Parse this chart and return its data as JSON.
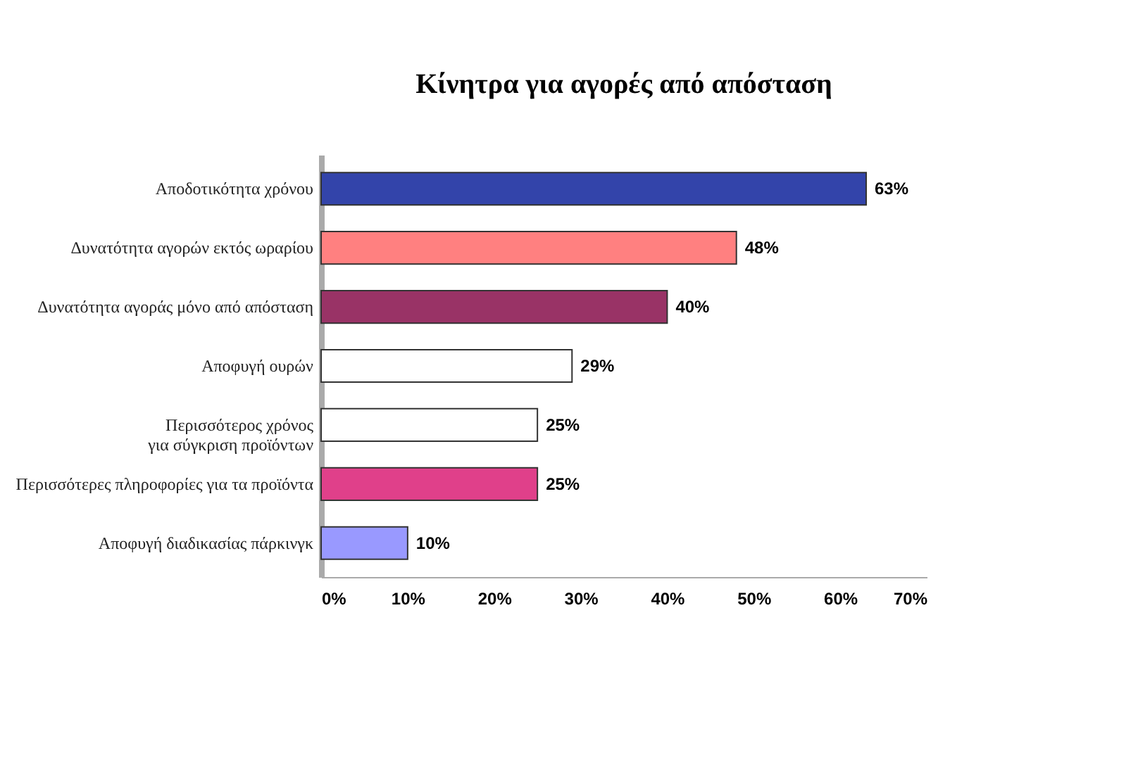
{
  "chart_data": {
    "type": "bar",
    "orientation": "horizontal",
    "title": "Κίνητρα για αγορές από απόσταση",
    "categories": [
      "Αποδοτικότητα χρόνου",
      "Δυνατότητα αγορών εκτός ωραρίου",
      "Δυνατότητα αγοράς μόνο από απόσταση",
      "Αποφυγή ουρών",
      "Περισσότερος χρόνος\nγια σύγκριση προϊόντων",
      "Περισσότερες πληροφορίες για τα προϊόντα",
      "Αποφυγή διαδικασίας πάρκινγκ"
    ],
    "values": [
      63,
      48,
      40,
      29,
      25,
      25,
      10
    ],
    "colors": [
      "#3344aa",
      "#ff8080",
      "#993366",
      "#ffffff",
      "#ffffff",
      "#e0408a",
      "#9999ff"
    ],
    "value_labels": [
      "63%",
      "48%",
      "40%",
      "29%",
      "25%",
      "25%",
      "10%"
    ],
    "xlim": [
      0,
      70
    ],
    "xticks": [
      {
        "value": 0,
        "label": "0%"
      },
      {
        "value": 10,
        "label": "10%"
      },
      {
        "value": 20,
        "label": "20%"
      },
      {
        "value": 30,
        "label": "30%"
      },
      {
        "value": 40,
        "label": "40%"
      },
      {
        "value": 50,
        "label": "50%"
      },
      {
        "value": 60,
        "label": "60%"
      },
      {
        "value": 70,
        "label": "70%"
      }
    ],
    "grid": false
  }
}
